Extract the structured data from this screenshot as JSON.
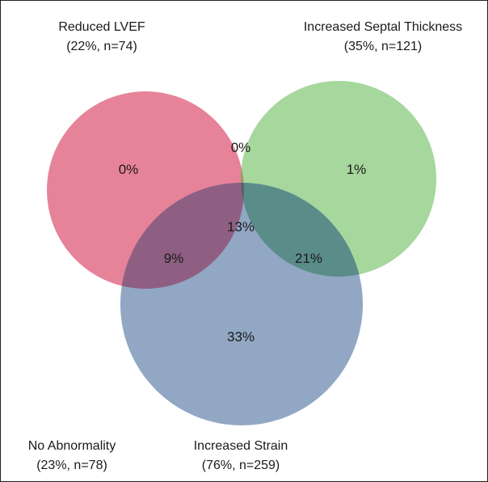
{
  "sets": {
    "lvef": {
      "name": "Reduced LVEF",
      "stats": "(22%, n=74)",
      "color": "#E26D87"
    },
    "septal": {
      "name": "Increased Septal Thickness",
      "stats": "(35%, n=121)",
      "color": "#96D08C"
    },
    "strain": {
      "name": "Increased Strain",
      "stats": "(76%, n=259)",
      "color": "#7E98B8"
    }
  },
  "no_abnormality": {
    "name": "No Abnormality",
    "stats": "(23%, n=78)"
  },
  "regions": {
    "lvef_only": "0%",
    "septal_only": "1%",
    "strain_only": "33%",
    "lvef_septal": "0%",
    "lvef_strain": "9%",
    "septal_strain": "21%",
    "all_three": "13%"
  }
}
